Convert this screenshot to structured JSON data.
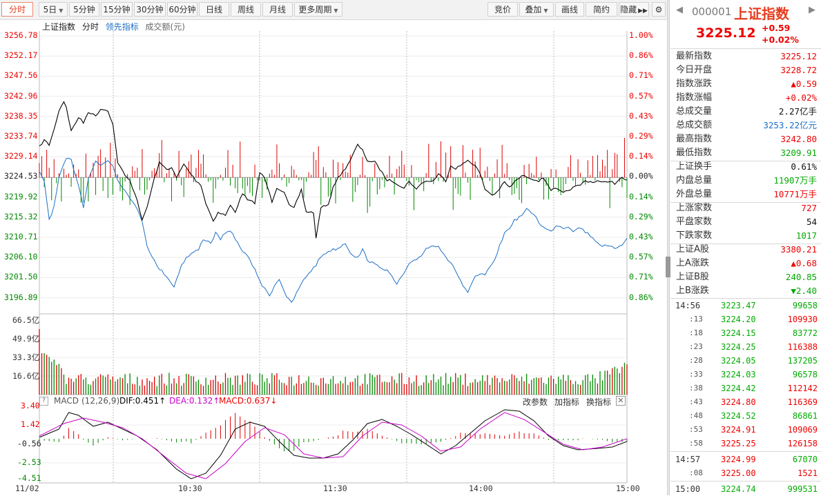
{
  "toolbar": {
    "items": [
      "分时",
      "5日",
      "5分钟",
      "15分钟",
      "30分钟",
      "60分钟",
      "日线",
      "周线",
      "月线",
      "更多周期"
    ],
    "right": [
      "竞价",
      "叠加",
      "画线",
      "简约",
      "隐藏"
    ]
  },
  "legend": {
    "name": "上证指数",
    "mode": "分时",
    "lead": "领先指标",
    "vol": "成交额(元)"
  },
  "price_axis": [
    "3256.78",
    "3252.17",
    "3247.56",
    "3242.96",
    "3238.35",
    "3233.74",
    "3229.14",
    "3224.53",
    "3219.92",
    "3215.32",
    "3210.71",
    "3206.10",
    "3201.50",
    "3196.89"
  ],
  "pct_axis": [
    "1.00%",
    "0.86%",
    "0.71%",
    "0.57%",
    "0.43%",
    "0.29%",
    "0.14%",
    "0.00%",
    "0.14%",
    "0.29%",
    "0.43%",
    "0.57%",
    "0.71%",
    "0.86%"
  ],
  "vol_axis": [
    "66.5亿",
    "49.9亿",
    "33.3亿",
    "16.6亿"
  ],
  "macd": {
    "label": "MACD",
    "params": "(12,26,9)",
    "dif": "DIF:0.451",
    "dea": "DEA:0.132",
    "macd": "MACD:0.637",
    "btn_params": "改参数",
    "btn_add": "加指标",
    "btn_swap": "换指标",
    "axis": [
      "3.40",
      "1.42",
      "-0.56",
      "-2.53",
      "-4.51"
    ]
  },
  "time_axis": [
    "11/02",
    "10:30",
    "11:30",
    "14:00",
    "15:00"
  ],
  "header": {
    "code": "000001",
    "name": "上证指数",
    "price": "3225.12",
    "chg": "+0.59",
    "pct": "+0.02%"
  },
  "quote_rows": [
    {
      "k": "最新指数",
      "v": "3225.12",
      "c": "red"
    },
    {
      "k": "今日开盘",
      "v": "3228.72",
      "c": "red"
    },
    {
      "k": "指数涨跌",
      "v": "▲0.59",
      "c": "red"
    },
    {
      "k": "指数涨幅",
      "v": "+0.02%",
      "c": "red"
    },
    {
      "k": "总成交量",
      "v": "2.27亿手",
      "c": "black"
    },
    {
      "k": "总成交额",
      "v": "3253.22亿元",
      "c": "blue"
    },
    {
      "k": "最高指数",
      "v": "3242.80",
      "c": "red"
    },
    {
      "k": "最低指数",
      "v": "3209.91",
      "c": "green"
    },
    {
      "k": "上证换手",
      "v": "0.61%",
      "c": "black"
    },
    {
      "k": "内盘总量",
      "v": "11907万手",
      "c": "green"
    },
    {
      "k": "外盘总量",
      "v": "10771万手",
      "c": "red"
    },
    {
      "k": "上涨家数",
      "v": "727",
      "c": "red"
    },
    {
      "k": "平盘家数",
      "v": "54",
      "c": "black"
    },
    {
      "k": "下跌家数",
      "v": "1017",
      "c": "green"
    },
    {
      "k": "上证A股",
      "v": "3380.21",
      "c": "red"
    },
    {
      "k": "上A涨跌",
      "v": "▲0.68",
      "c": "red"
    },
    {
      "k": "上证B股",
      "v": "240.85",
      "c": "green"
    },
    {
      "k": "上B涨跌",
      "v": "▼2.40",
      "c": "green"
    }
  ],
  "ticks": [
    {
      "t": "14:56",
      "p": "3223.47",
      "v": "99658",
      "sub": false,
      "pc": "green",
      "vc": "green"
    },
    {
      "t": ":13",
      "p": "3224.20",
      "v": "109930",
      "sub": true,
      "pc": "green",
      "vc": "red"
    },
    {
      "t": ":18",
      "p": "3224.15",
      "v": "83772",
      "sub": true,
      "pc": "green",
      "vc": "green"
    },
    {
      "t": ":23",
      "p": "3224.25",
      "v": "116388",
      "sub": true,
      "pc": "green",
      "vc": "red"
    },
    {
      "t": ":28",
      "p": "3224.05",
      "v": "137205",
      "sub": true,
      "pc": "green",
      "vc": "green"
    },
    {
      "t": ":33",
      "p": "3224.03",
      "v": "96578",
      "sub": true,
      "pc": "green",
      "vc": "green"
    },
    {
      "t": ":38",
      "p": "3224.42",
      "v": "112142",
      "sub": true,
      "pc": "green",
      "vc": "red"
    },
    {
      "t": ":43",
      "p": "3224.80",
      "v": "116369",
      "sub": true,
      "pc": "red",
      "vc": "red"
    },
    {
      "t": ":48",
      "p": "3224.52",
      "v": "86861",
      "sub": true,
      "pc": "green",
      "vc": "green"
    },
    {
      "t": ":53",
      "p": "3224.91",
      "v": "109069",
      "sub": true,
      "pc": "red",
      "vc": "red"
    },
    {
      "t": ":58",
      "p": "3225.25",
      "v": "126158",
      "sub": true,
      "pc": "red",
      "vc": "red"
    },
    {
      "t": "14:57",
      "p": "3224.99",
      "v": "67070",
      "sub": false,
      "pc": "red",
      "vc": "green"
    },
    {
      "t": ":08",
      "p": "3225.00",
      "v": "1521",
      "sub": true,
      "pc": "red",
      "vc": "red"
    },
    {
      "t": "15:00",
      "p": "3224.74",
      "v": "999531",
      "sub": false,
      "pc": "green",
      "vc": "green"
    }
  ],
  "colors": {
    "red": "#e00000",
    "green": "#008800",
    "price_line": "#000000",
    "lead_line": "#1c6fc6",
    "dea_line": "#cc00cc"
  }
}
